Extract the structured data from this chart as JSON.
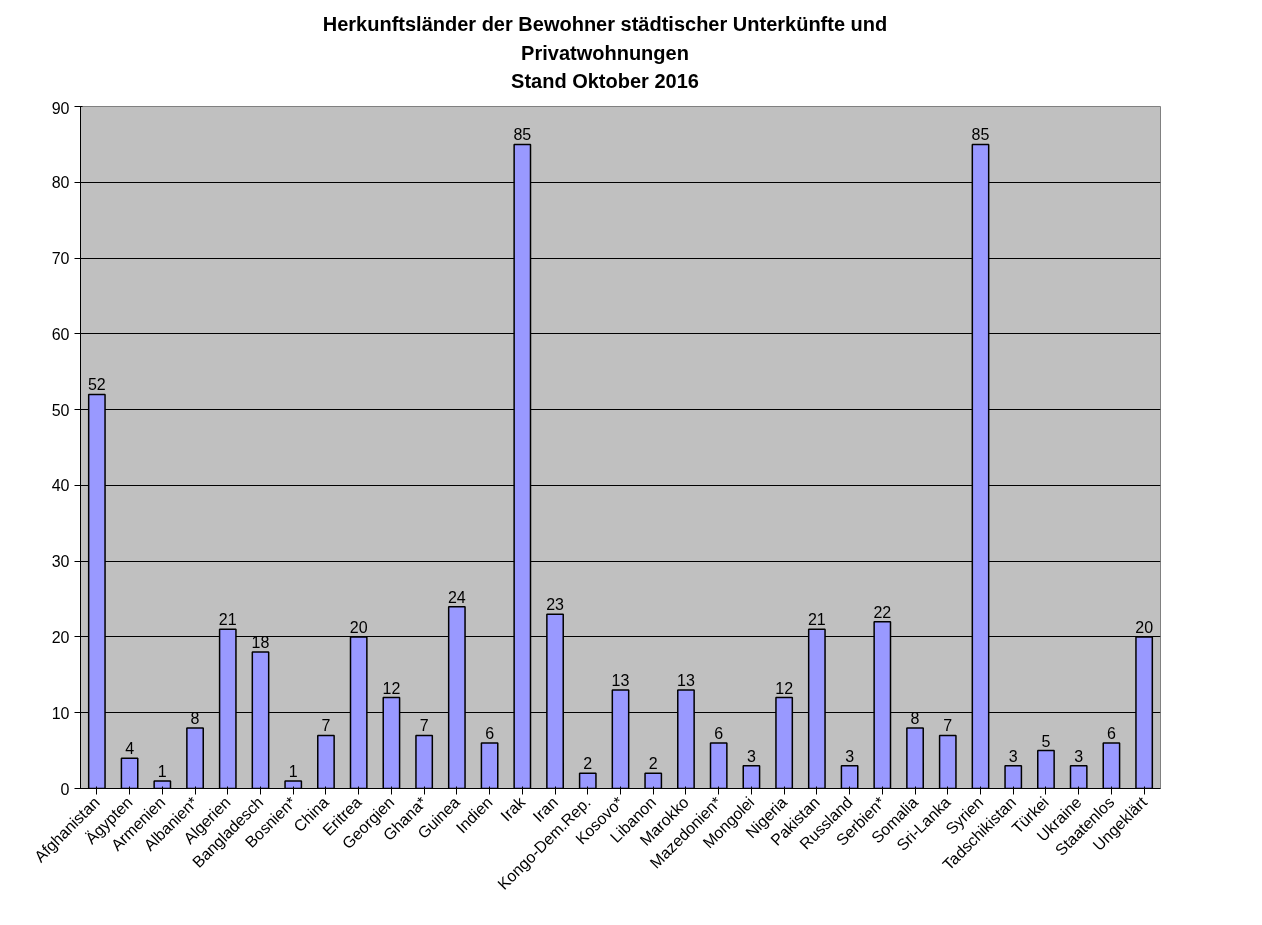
{
  "chart_data": {
    "type": "bar",
    "title": "Herkunftsländer der Bewohner städtischer Unterkünfte und Privatwohnungen",
    "subtitle": "Stand Oktober 2016",
    "categories": [
      "Afghanistan",
      "Ägypten",
      "Armenien",
      "Albanien*",
      "Algerien",
      "Bangladesch",
      "Bosnien*",
      "China",
      "Eritrea",
      "Georgien",
      "Ghana*",
      "Guinea",
      "Indien",
      "Irak",
      "Iran",
      "Kongo-Dem.Rep.",
      "Kosovo*",
      "Libanon",
      "Marokko",
      "Mazedonien*",
      "Mongolei",
      "Nigeria",
      "Pakistan",
      "Russland",
      "Serbien*",
      "Somalia",
      "Sri-Lanka",
      "Syrien",
      "Tadschikistan",
      "Türkei",
      "Ukraine",
      "Staatenlos",
      "Ungeklärt"
    ],
    "values": [
      52,
      4,
      1,
      8,
      21,
      18,
      1,
      7,
      20,
      12,
      7,
      24,
      6,
      85,
      23,
      2,
      13,
      2,
      13,
      6,
      3,
      12,
      21,
      3,
      22,
      8,
      7,
      85,
      3,
      5,
      3,
      6,
      20
    ],
    "color": "#9999ff",
    "ylim": [
      0,
      90
    ],
    "yticks": [
      0,
      10,
      20,
      30,
      40,
      50,
      60,
      70,
      80,
      90
    ],
    "grid": "y",
    "data_labels": true
  }
}
